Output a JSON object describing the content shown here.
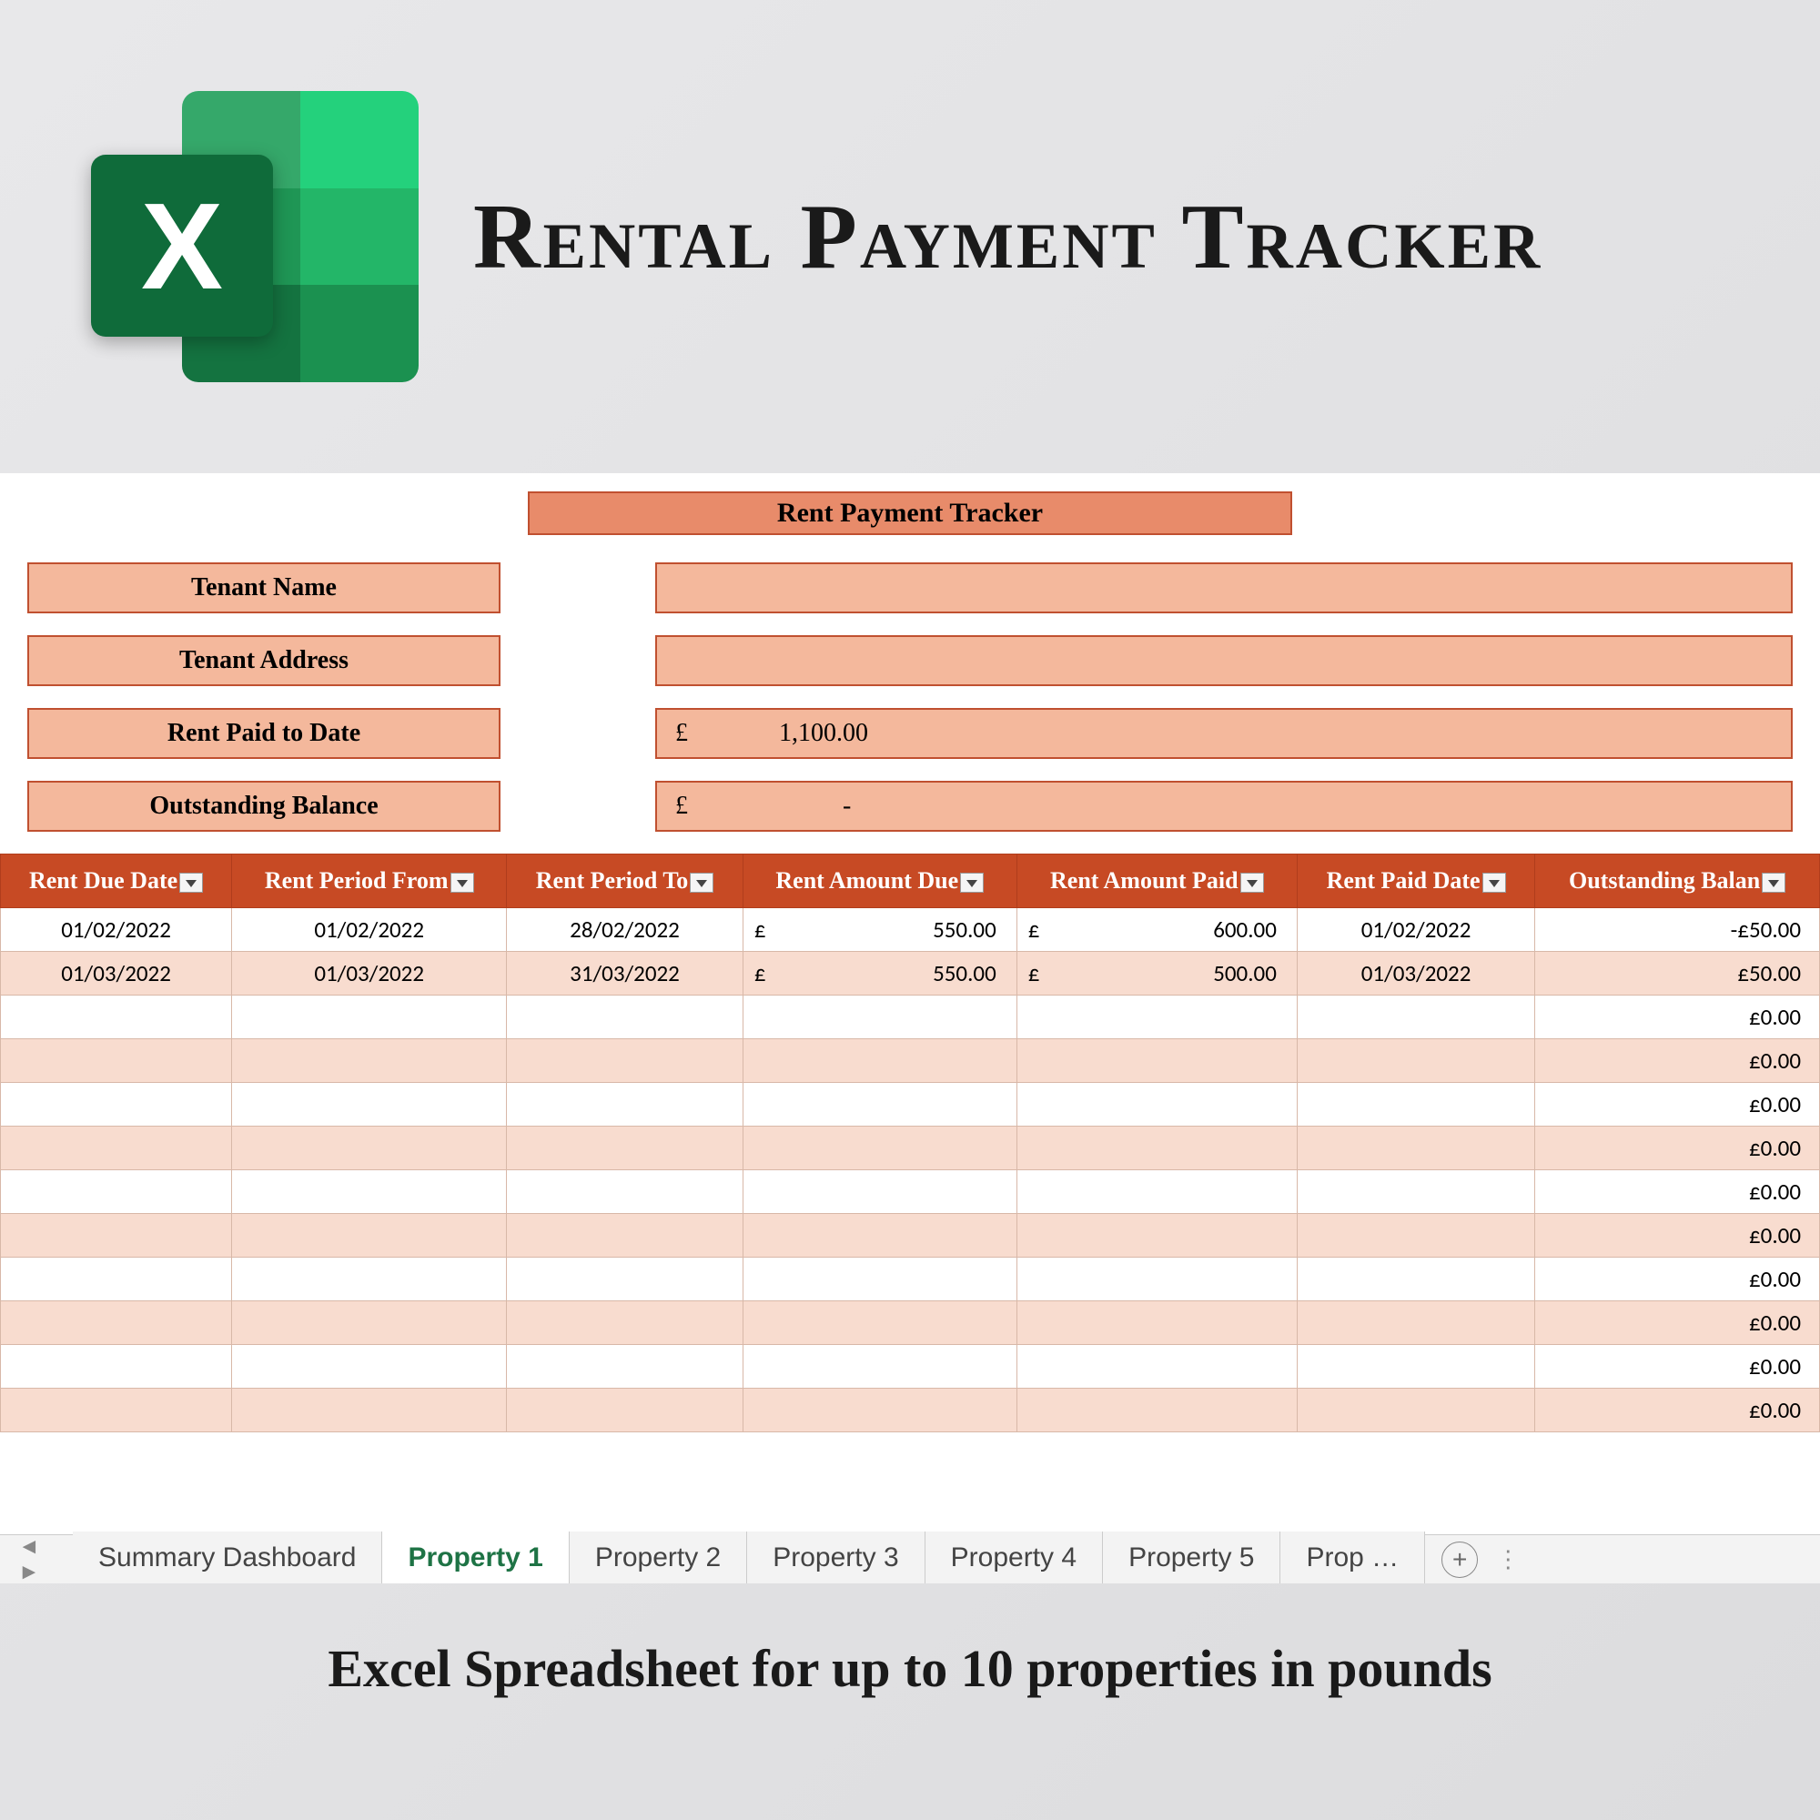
{
  "promo": {
    "title": "Rental Payment Tracker",
    "footer": "Excel Spreadsheet for up to 10 properties in pounds",
    "icon_letter": "X"
  },
  "colors": {
    "header_bg": "#e88b6a",
    "label_bg": "#f4b89c",
    "border": "#c05030",
    "table_header_bg": "#c74a24",
    "row_alt_bg": "#f8dccf",
    "active_tab": "#1e7345"
  },
  "sheet": {
    "title": "Rent Payment Tracker",
    "info": [
      {
        "label": "Tenant Name",
        "value": ""
      },
      {
        "label": "Tenant Address",
        "value": ""
      },
      {
        "label": "Rent Paid to Date",
        "currency": "£",
        "value": "1,100.00"
      },
      {
        "label": "Outstanding Balance",
        "currency": "£",
        "value": "-"
      }
    ],
    "columns": [
      "Rent Due Date",
      "Rent Period From",
      "Rent Period To",
      "Rent Amount Due",
      "Rent Amount Paid",
      "Rent Paid Date",
      "Outstanding Balan"
    ],
    "rows": [
      {
        "due": "01/02/2022",
        "from": "01/02/2022",
        "to": "28/02/2022",
        "amt_due": "550.00",
        "amt_paid": "600.00",
        "paid_date": "01/02/2022",
        "balance": "-£50.00"
      },
      {
        "due": "01/03/2022",
        "from": "01/03/2022",
        "to": "31/03/2022",
        "amt_due": "550.00",
        "amt_paid": "500.00",
        "paid_date": "01/03/2022",
        "balance": "£50.00"
      },
      {
        "balance": "£0.00"
      },
      {
        "balance": "£0.00"
      },
      {
        "balance": "£0.00"
      },
      {
        "balance": "£0.00"
      },
      {
        "balance": "£0.00"
      },
      {
        "balance": "£0.00"
      },
      {
        "balance": "£0.00"
      },
      {
        "balance": "£0.00"
      },
      {
        "balance": "£0.00"
      },
      {
        "balance": "£0.00"
      }
    ],
    "currency": "£"
  },
  "tabs": {
    "items": [
      "Summary Dashboard",
      "Property 1",
      "Property 2",
      "Property 3",
      "Property 4",
      "Property 5",
      "Prop …"
    ],
    "active_index": 1
  }
}
